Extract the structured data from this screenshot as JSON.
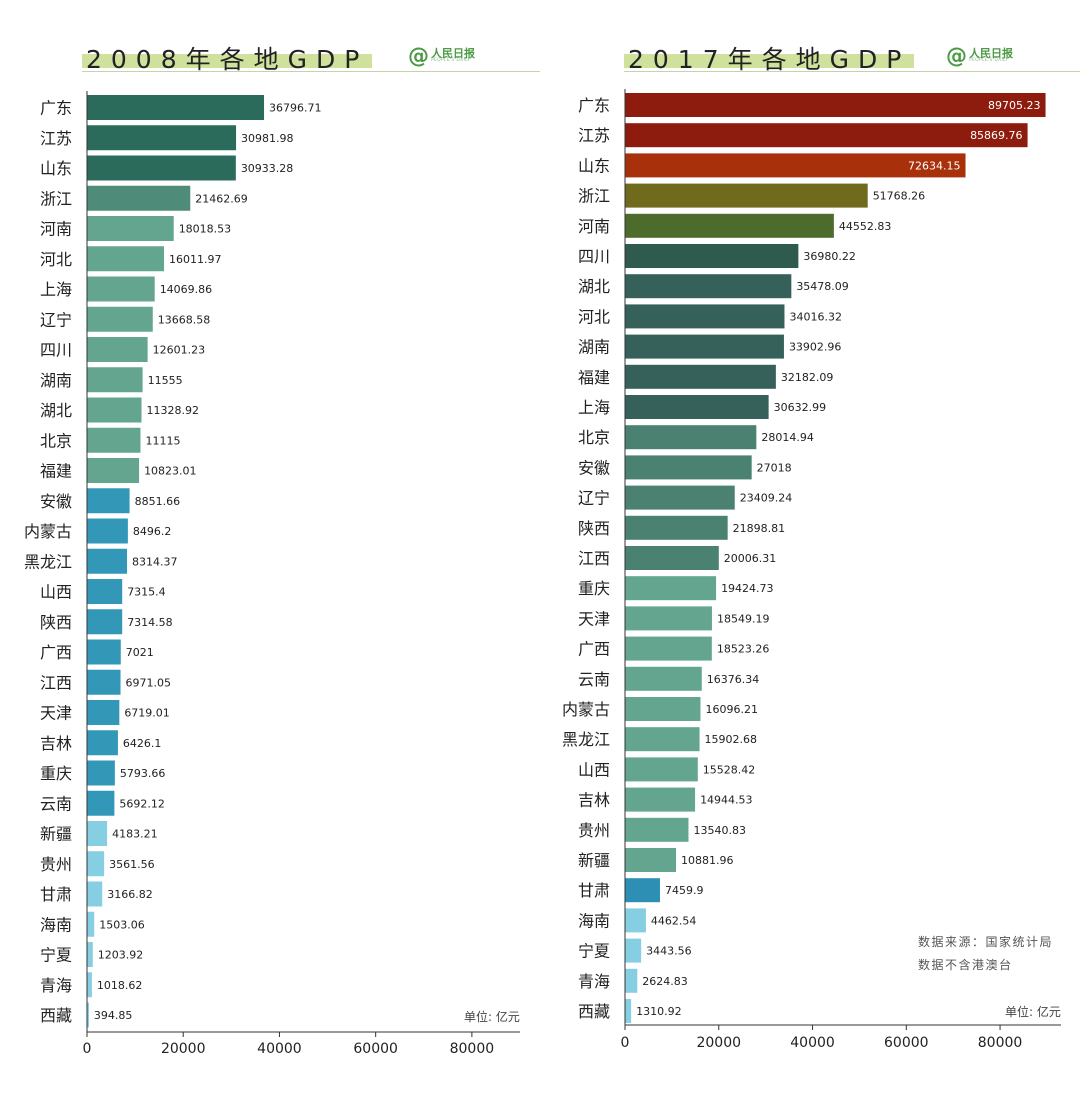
{
  "chart_data": [
    {
      "type": "bar",
      "orientation": "horizontal",
      "title": "2008年各地GDP",
      "unit_label": "单位: 亿元",
      "xlim": [
        0,
        90000
      ],
      "xticks": [
        "0",
        "20000",
        "40000",
        "60000",
        "80000"
      ],
      "xtick_values": [
        0,
        20000,
        40000,
        60000,
        80000
      ],
      "logo": "人民日报",
      "categories": [
        "广东",
        "江苏",
        "山东",
        "浙江",
        "河南",
        "河北",
        "上海",
        "辽宁",
        "四川",
        "湖南",
        "湖北",
        "北京",
        "福建",
        "安徽",
        "内蒙古",
        "黑龙江",
        "山西",
        "陕西",
        "广西",
        "江西",
        "天津",
        "吉林",
        "重庆",
        "云南",
        "新疆",
        "贵州",
        "甘肃",
        "海南",
        "宁夏",
        "青海",
        "西藏"
      ],
      "values": [
        36796.71,
        30981.98,
        30933.28,
        21462.69,
        18018.53,
        16011.97,
        14069.86,
        13668.58,
        12601.23,
        11555,
        11328.92,
        11115,
        10823.01,
        8851.66,
        8496.2,
        8314.37,
        7315.4,
        7314.58,
        7021,
        6971.05,
        6719.01,
        6426.1,
        5793.66,
        5692.12,
        4183.21,
        3561.56,
        3166.82,
        1503.06,
        1203.92,
        1018.62,
        394.85
      ],
      "labels": [
        "36796.71",
        "30981.98",
        "30933.28",
        "21462.69",
        "18018.53",
        "16011.97",
        "14069.86",
        "13668.58",
        "12601.23",
        "11555",
        "11328.92",
        "11115",
        "10823.01",
        "8851.66",
        "8496.2",
        "8314.37",
        "7315.4",
        "7314.58",
        "7021",
        "6971.05",
        "6719.01",
        "6426.1",
        "5793.66",
        "5692.12",
        "4183.21",
        "3561.56",
        "3166.82",
        "1503.06",
        "1203.92",
        "1018.62",
        "394.85"
      ],
      "colors": [
        "#2b6b5c",
        "#2b6b5c",
        "#2b6b5c",
        "#4e8b78",
        "#64a590",
        "#64a590",
        "#64a590",
        "#64a590",
        "#64a590",
        "#64a590",
        "#64a590",
        "#64a590",
        "#64a590",
        "#3398b8",
        "#3398b8",
        "#3398b8",
        "#3398b8",
        "#3398b8",
        "#3398b8",
        "#3398b8",
        "#3398b8",
        "#3398b8",
        "#3398b8",
        "#3398b8",
        "#86cfe3",
        "#86cfe3",
        "#86cfe3",
        "#86cfe3",
        "#86cfe3",
        "#86cfe3",
        "#86cfe3"
      ]
    },
    {
      "type": "bar",
      "orientation": "horizontal",
      "title": "2017年各地GDP",
      "unit_label": "单位: 亿元",
      "source_note": [
        "数据来源：国家统计局",
        "数据不含港澳台"
      ],
      "xlim": [
        0,
        93000
      ],
      "xticks": [
        "0",
        "20000",
        "40000",
        "60000",
        "80000"
      ],
      "xtick_values": [
        0,
        20000,
        40000,
        60000,
        80000
      ],
      "logo": "人民日报",
      "categories": [
        "广东",
        "江苏",
        "山东",
        "浙江",
        "河南",
        "四川",
        "湖北",
        "河北",
        "湖南",
        "福建",
        "上海",
        "北京",
        "安徽",
        "辽宁",
        "陕西",
        "江西",
        "重庆",
        "天津",
        "广西",
        "云南",
        "内蒙古",
        "黑龙江",
        "山西",
        "吉林",
        "贵州",
        "新疆",
        "甘肃",
        "海南",
        "宁夏",
        "青海",
        "西藏"
      ],
      "values": [
        89705.23,
        85869.76,
        72634.15,
        51768.26,
        44552.83,
        36980.22,
        35478.09,
        34016.32,
        33902.96,
        32182.09,
        30632.99,
        28014.94,
        27018,
        23409.24,
        21898.81,
        20006.31,
        19424.73,
        18549.19,
        18523.26,
        16376.34,
        16096.21,
        15902.68,
        15528.42,
        14944.53,
        13540.83,
        10881.96,
        7459.9,
        4462.54,
        3443.56,
        2624.83,
        1310.92
      ],
      "labels": [
        "89705.23",
        "85869.76",
        "72634.15",
        "51768.26",
        "44552.83",
        "36980.22",
        "35478.09",
        "34016.32",
        "33902.96",
        "32182.09",
        "30632.99",
        "28014.94",
        "27018",
        "23409.24",
        "21898.81",
        "20006.31",
        "19424.73",
        "18549.19",
        "18523.26",
        "16376.34",
        "16096.21",
        "15902.68",
        "15528.42",
        "14944.53",
        "13540.83",
        "10881.96",
        "7459.9",
        "4462.54",
        "3443.56",
        "2624.83",
        "1310.92"
      ],
      "colors": [
        "#8e1c0e",
        "#8e1c0e",
        "#a8310c",
        "#6f6a1c",
        "#4d6b2a",
        "#2f5a4e",
        "#35615a",
        "#35615a",
        "#35615a",
        "#35615a",
        "#35615a",
        "#4a8171",
        "#4a8171",
        "#4a8171",
        "#4a8171",
        "#4a8171",
        "#64a590",
        "#64a590",
        "#64a590",
        "#64a590",
        "#64a590",
        "#64a590",
        "#64a590",
        "#64a590",
        "#64a590",
        "#64a590",
        "#2e8fb5",
        "#86cfe3",
        "#86cfe3",
        "#86cfe3",
        "#86cfe3"
      ]
    }
  ]
}
